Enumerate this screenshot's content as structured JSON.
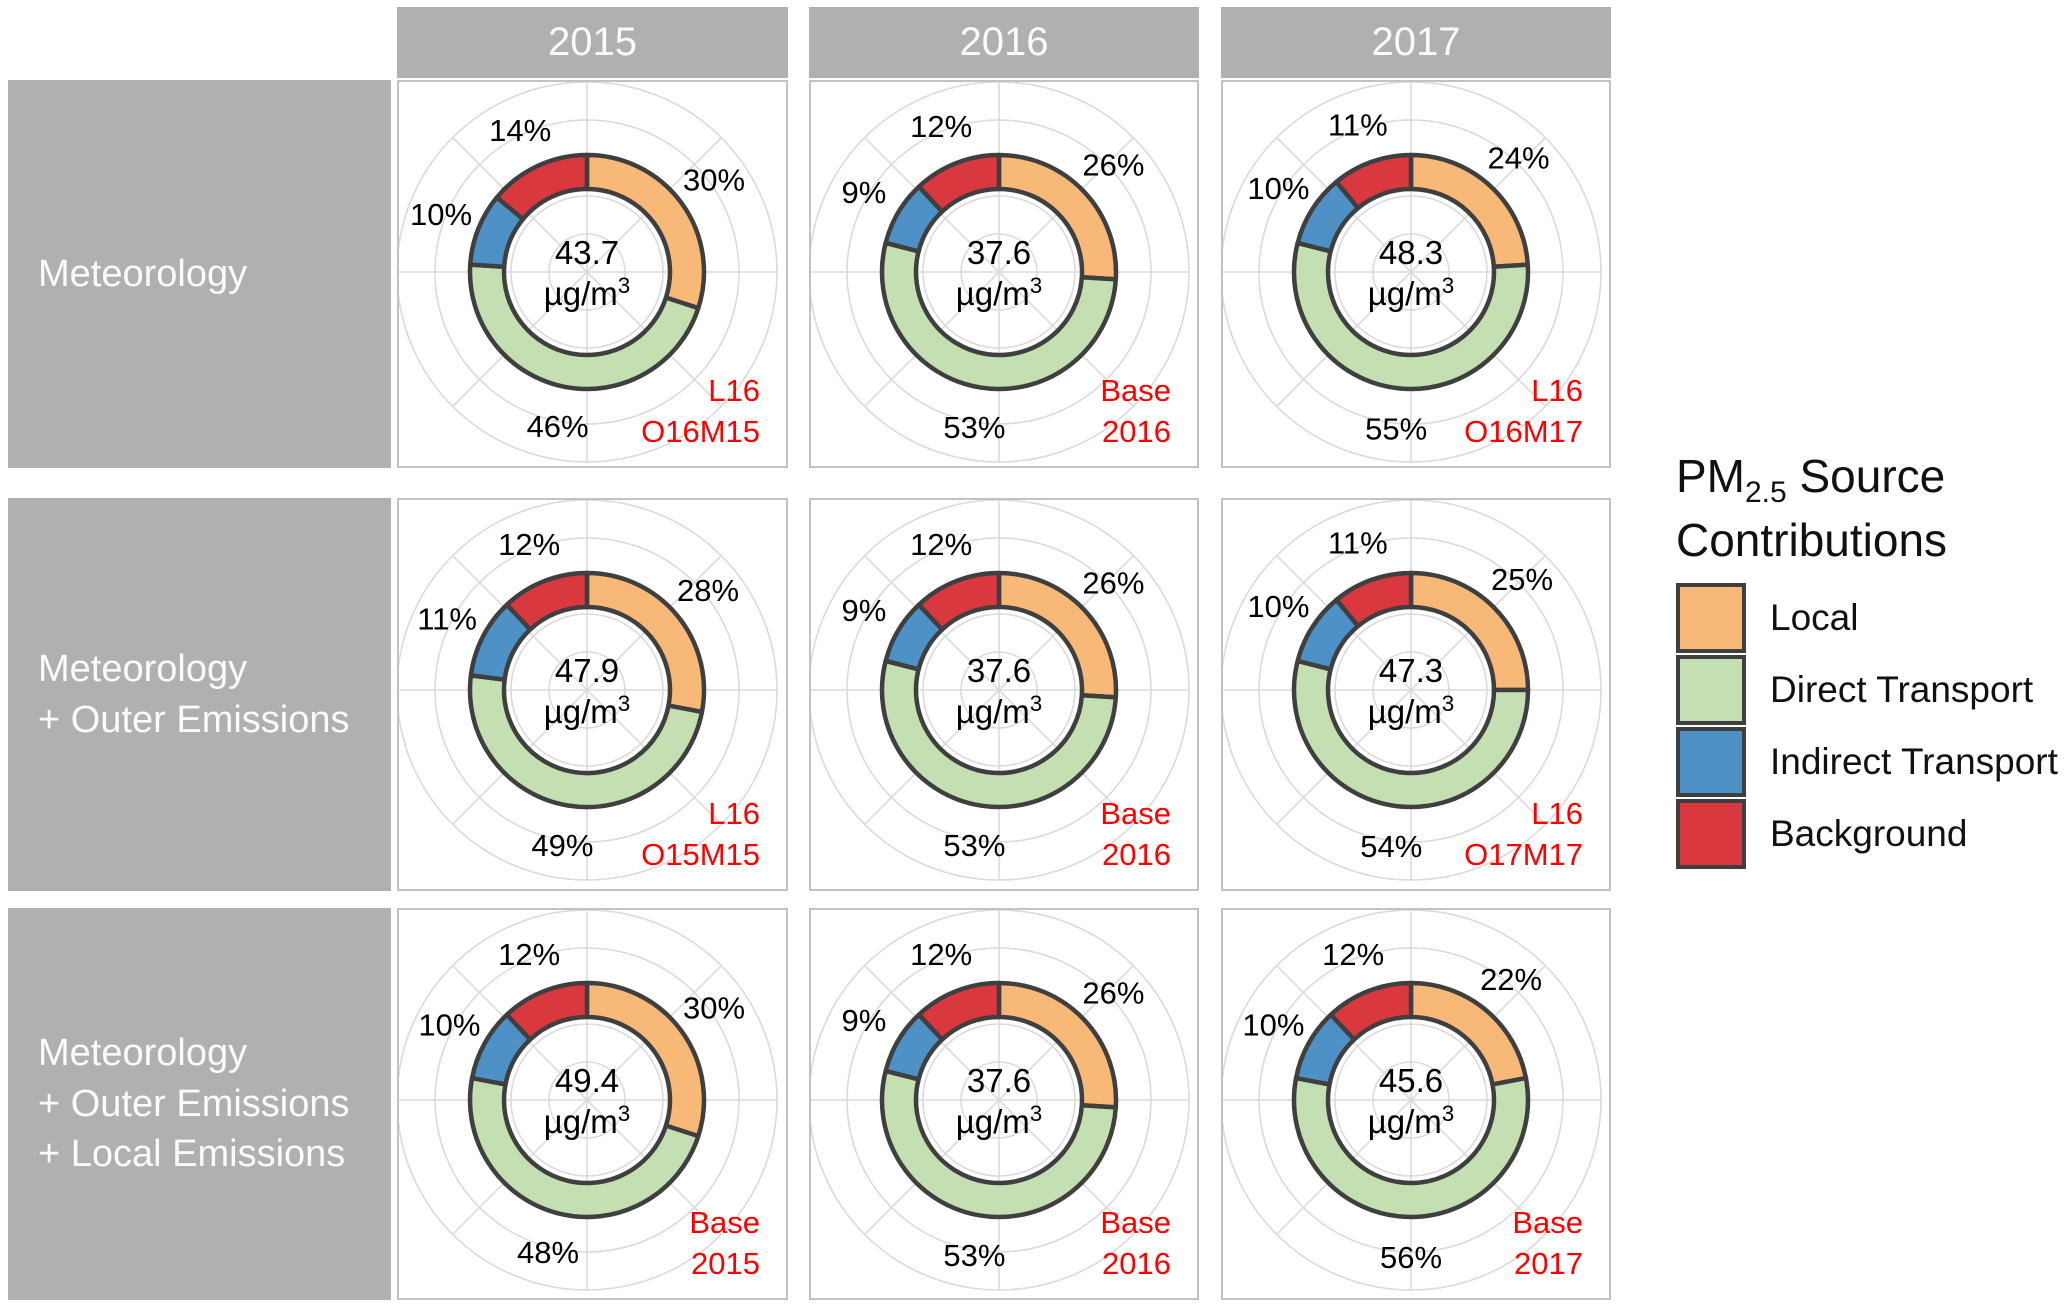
{
  "units": {
    "prefix": "µg/m",
    "sup": "3"
  },
  "columns_header": [
    "2015",
    "2016",
    "2017"
  ],
  "rows": [
    {
      "lines": [
        "Meteorology"
      ]
    },
    {
      "lines": [
        "Meteorology",
        "+ Outer Emissions"
      ]
    },
    {
      "lines": [
        "Meteorology",
        "+ Outer Emissions",
        "+ Local Emissions"
      ]
    }
  ],
  "legend": {
    "title_prefix": "PM",
    "title_sub": "2.5",
    "title_line1_rest": " Source",
    "title_line2": "Contributions",
    "items": [
      {
        "label": "Local",
        "color": "#F7B878"
      },
      {
        "label": "Direct Transport",
        "color": "#C4E0B2"
      },
      {
        "label": "Indirect Transport",
        "color": "#4D91C6"
      },
      {
        "label": "Background",
        "color": "#D8383E"
      }
    ]
  },
  "colors": {
    "local": "#F7B878",
    "direct": "#C4E0B2",
    "indirect": "#4D91C6",
    "background": "#D8383E",
    "segment_border": "#3F3F3F",
    "grid": "#DADADA",
    "annotation": "#FF0000",
    "strip_bg": "#B0B0B0",
    "strip_text": "#FBFBFB",
    "panel_border": "#C2C2C2",
    "text": "#000000"
  },
  "chart_data": {
    "type": "pie",
    "subtype": "donut-grid",
    "unit": "µg/m³",
    "columns": [
      "2015",
      "2016",
      "2017"
    ],
    "rows": [
      "Meteorology",
      "Meteorology + Outer Emissions",
      "Meteorology + Outer Emissions + Local Emissions"
    ],
    "series_order": [
      "Local",
      "Direct Transport",
      "Indirect Transport",
      "Background"
    ],
    "legend_title": "PM2.5 Source Contributions",
    "legend_position": "right",
    "grid": "polar, 5 concentric circles + 8 spokes",
    "panels": [
      {
        "row": 0,
        "col": 0,
        "values_pct": [
          30,
          46,
          10,
          14
        ],
        "center_value": "43.7",
        "annotation": [
          "L16",
          "O16M15"
        ]
      },
      {
        "row": 0,
        "col": 1,
        "values_pct": [
          26,
          53,
          9,
          12
        ],
        "center_value": "37.6",
        "annotation": [
          "Base",
          "2016"
        ]
      },
      {
        "row": 0,
        "col": 2,
        "values_pct": [
          24,
          55,
          10,
          11
        ],
        "center_value": "48.3",
        "annotation": [
          "L16",
          "O16M17"
        ]
      },
      {
        "row": 1,
        "col": 0,
        "values_pct": [
          28,
          49,
          11,
          12
        ],
        "center_value": "47.9",
        "annotation": [
          "L16",
          "O15M15"
        ]
      },
      {
        "row": 1,
        "col": 1,
        "values_pct": [
          26,
          53,
          9,
          12
        ],
        "center_value": "37.6",
        "annotation": [
          "Base",
          "2016"
        ]
      },
      {
        "row": 1,
        "col": 2,
        "values_pct": [
          25,
          54,
          10,
          11
        ],
        "center_value": "47.3",
        "annotation": [
          "L16",
          "O17M17"
        ]
      },
      {
        "row": 2,
        "col": 0,
        "values_pct": [
          30,
          48,
          10,
          12
        ],
        "center_value": "49.4",
        "annotation": [
          "Base",
          "2015"
        ]
      },
      {
        "row": 2,
        "col": 1,
        "values_pct": [
          26,
          53,
          9,
          12
        ],
        "center_value": "37.6",
        "annotation": [
          "Base",
          "2016"
        ]
      },
      {
        "row": 2,
        "col": 2,
        "values_pct": [
          22,
          56,
          10,
          12
        ],
        "center_value": "45.6",
        "annotation": [
          "Base",
          "2017"
        ]
      }
    ]
  }
}
